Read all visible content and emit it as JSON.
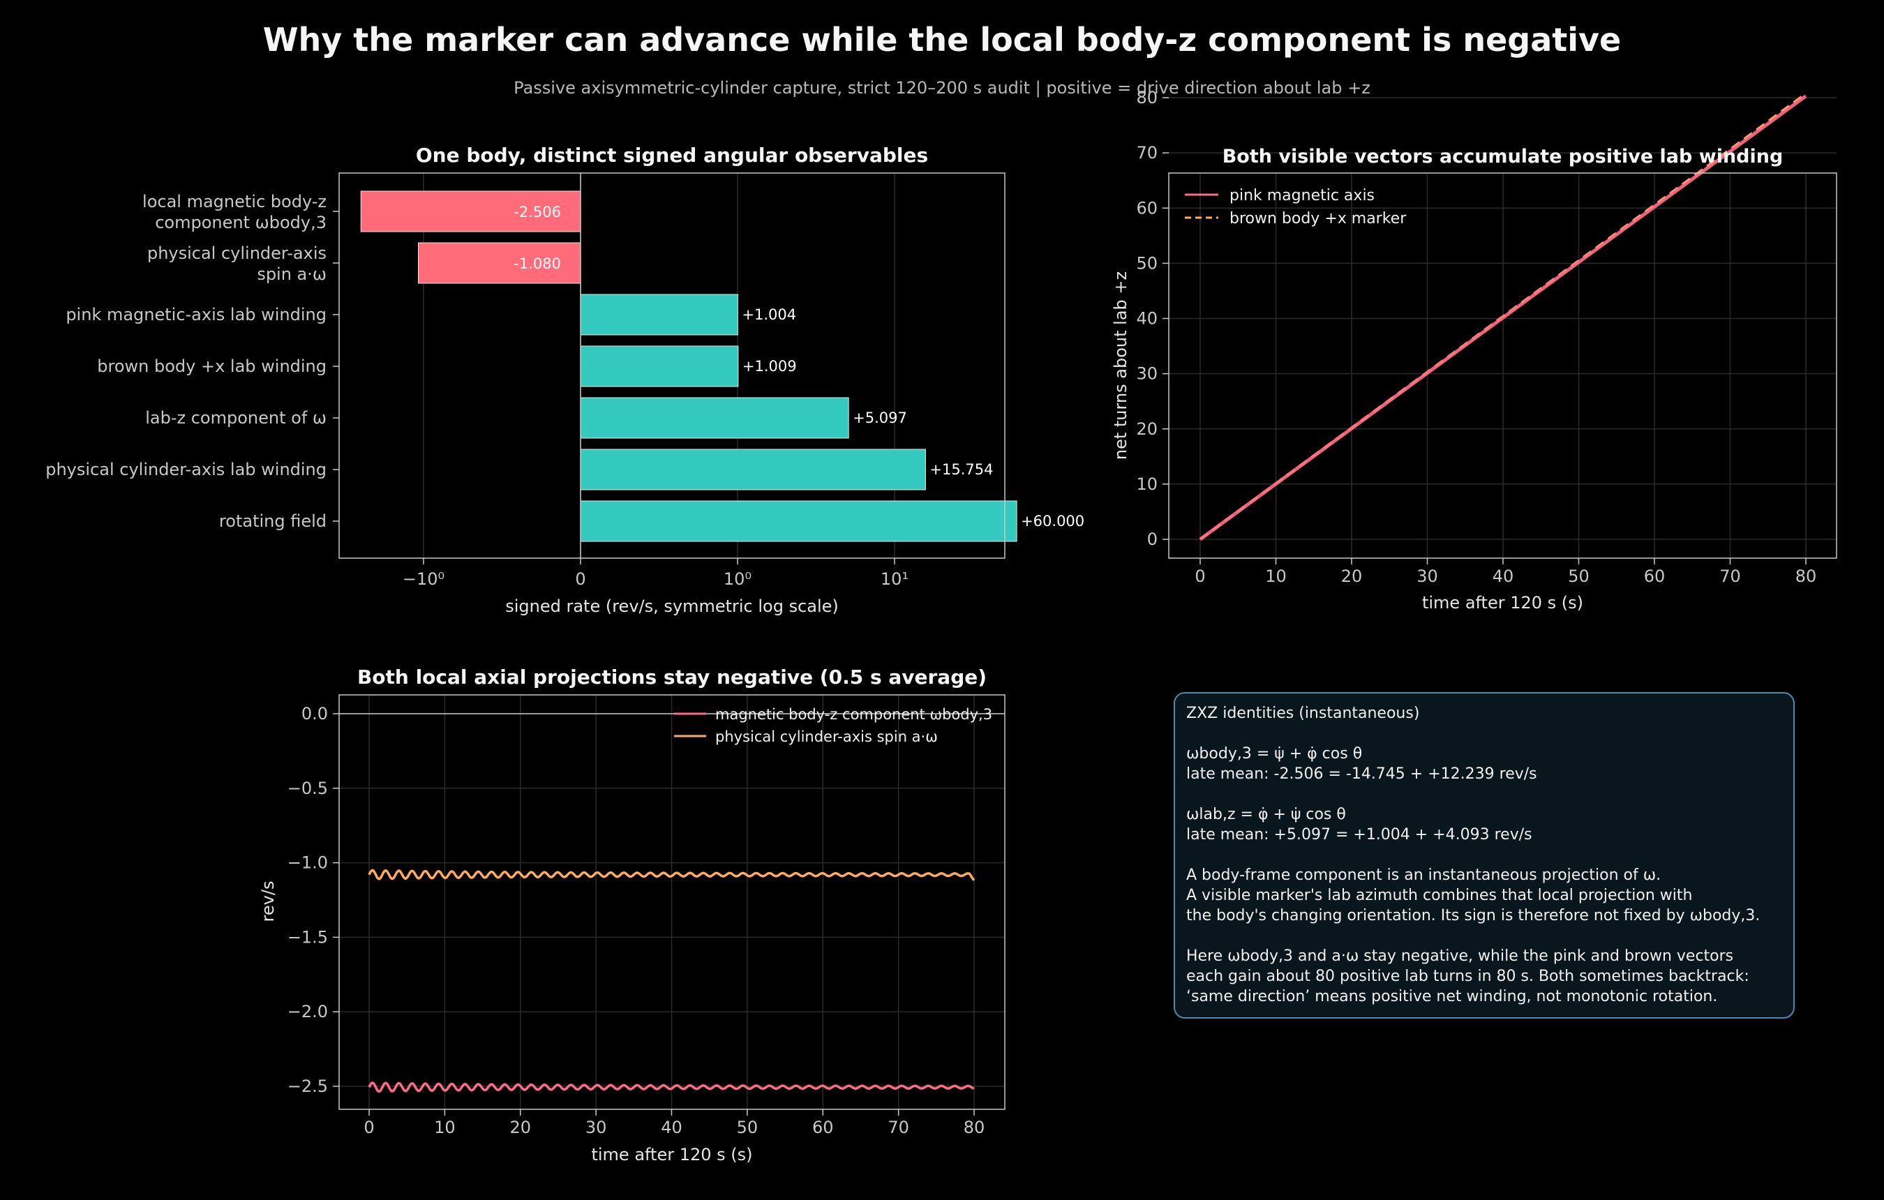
{
  "title": "Why the marker can advance while the local body-z component is negative",
  "subtitle": "Passive axisymmetric-cylinder capture, strict 120–200 s audit  |  positive = drive direction about lab +z",
  "colors": {
    "negative_bar": "#ff6b78",
    "positive_bar": "#33c9be",
    "pink": "#ff6b85",
    "orange": "#ffab5e",
    "axis": "#c8c8c8",
    "grid": "#2a2a2a"
  },
  "chart_data": [
    {
      "type": "bar",
      "orientation": "horizontal",
      "title": "One body, distinct signed angular observables",
      "xlabel": "signed rate (rev/s, symmetric log scale)",
      "xscale": "symlog",
      "xticks": [
        "−10⁰",
        "0",
        "10⁰",
        "10¹"
      ],
      "categories": [
        [
          "local magnetic body-z",
          "component  ωbody,3"
        ],
        [
          "physical cylinder-axis",
          "spin  a·ω"
        ],
        [
          "pink magnetic-axis lab winding"
        ],
        [
          "brown body +x lab winding"
        ],
        [
          "lab-z component of ω"
        ],
        [
          "physical cylinder-axis lab winding"
        ],
        [
          "rotating field"
        ]
      ],
      "values": [
        -2.506,
        -1.08,
        1.004,
        1.009,
        5.097,
        15.754,
        60.0
      ],
      "labels": [
        "-2.506",
        "-1.080",
        "+1.004",
        "+1.009",
        "+5.097",
        "+15.754",
        "+60.000"
      ],
      "grid": true
    },
    {
      "type": "line",
      "title": "Both visible vectors accumulate positive lab winding",
      "xlabel": "time after 120 s (s)",
      "ylabel": "net turns about lab +z",
      "xlim": [
        0,
        80
      ],
      "ylim": [
        -3,
        85
      ],
      "xticks": [
        0,
        10,
        20,
        30,
        40,
        50,
        60,
        70,
        80
      ],
      "yticks": [
        0,
        10,
        20,
        30,
        40,
        50,
        60,
        70,
        80
      ],
      "legend_position": "top-left",
      "grid": true,
      "series": [
        {
          "name": "pink magnetic axis",
          "style": "solid",
          "x": [
            0,
            80
          ],
          "y": [
            0,
            80.3
          ]
        },
        {
          "name": "brown body +x marker",
          "style": "dashed",
          "x": [
            0,
            80
          ],
          "y": [
            0,
            80.7
          ]
        }
      ]
    },
    {
      "type": "line",
      "title": "Both local axial projections stay negative (0.5 s average)",
      "xlabel": "time after 120 s (s)",
      "ylabel": "rev/s",
      "xlim": [
        0,
        80
      ],
      "ylim": [
        -2.65,
        0.12
      ],
      "xticks": [
        0,
        10,
        20,
        30,
        40,
        50,
        60,
        70,
        80
      ],
      "yticks": [
        "0.0",
        "−0.5",
        "−1.0",
        "−1.5",
        "−2.0",
        "−2.5"
      ],
      "legend_position": "top-right",
      "grid": true,
      "series": [
        {
          "name": "magnetic body-z component ωbody,3",
          "mean": -2.506,
          "oscillation_amplitude": 0.03,
          "period_s": 1.75
        },
        {
          "name": "physical cylinder-axis spin a·ω",
          "mean": -1.08,
          "oscillation_amplitude": 0.03,
          "period_s": 1.75
        }
      ]
    }
  ],
  "info_box": {
    "lines": [
      "ZXZ identities (instantaneous)",
      "ωbody,3 = ψ̇ + φ̇ cos θ\nlate mean: -2.506 = -14.745 + +12.239 rev/s",
      "ωlab,z = φ̇ + ψ̇ cos θ\nlate mean: +5.097 = +1.004 + +4.093 rev/s",
      "A body-frame component is an instantaneous projection of ω.\nA visible marker's lab azimuth combines that local projection with\nthe body's changing orientation. Its sign is therefore not fixed by ωbody,3.",
      "Here ωbody,3 and a·ω stay negative, while the pink and brown vectors\neach gain about 80 positive lab turns in 80 s. Both sometimes backtrack:\n‘same direction’ means positive net winding, not monotonic rotation."
    ]
  }
}
